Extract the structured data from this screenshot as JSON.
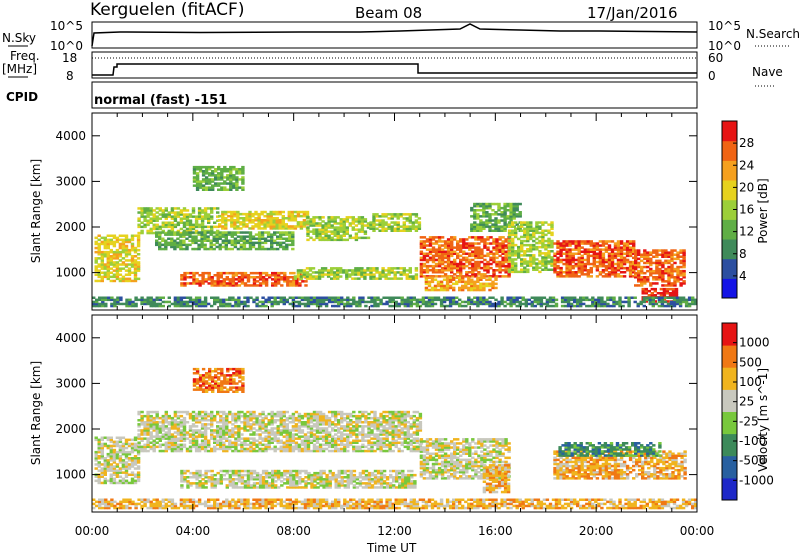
{
  "header": {
    "station": "Kerguelen (fitACF)",
    "beam": "Beam 08",
    "date": "17/Jan/2016"
  },
  "sky_panel": {
    "left_label": "N.Sky",
    "right_label": "N.Search",
    "left_ticks": [
      "10^5",
      "10^0"
    ],
    "right_ticks": [
      "10^5",
      "10^0"
    ]
  },
  "freq_panel": {
    "left_label_line1": "Freq.",
    "left_label_line2": "[MHz]",
    "right_label": "Nave",
    "left_ticks": [
      "18",
      "8"
    ],
    "right_ticks": [
      "60",
      "0"
    ],
    "cpid_label": "CPID",
    "mode_text": "normal (fast) -151"
  },
  "time_axis": {
    "title": "Time UT",
    "ticks": [
      "00:00",
      "04:00",
      "08:00",
      "12:00",
      "16:00",
      "20:00",
      "00:00"
    ]
  },
  "chart_data": [
    {
      "type": "heatmap",
      "title": "Power",
      "ylabel": "Slant Range [km]",
      "xlabel": "Time UT",
      "x_range_hours": [
        0,
        24
      ],
      "ylim": [
        180,
        4500
      ],
      "y_ticks": [
        1000,
        2000,
        3000,
        4000
      ],
      "colorbar_label": "Power [dB]",
      "colorbar_ticks": [
        "28",
        "24",
        "20",
        "16",
        "12",
        "8",
        "4"
      ],
      "colorbar_colors": [
        "#1414e6",
        "#2c4fa0",
        "#3f8a5a",
        "#5fae45",
        "#9ccf39",
        "#e6d21e",
        "#f5a01e",
        "#f06414",
        "#e61414"
      ],
      "regions": [
        {
          "t0": 0.1,
          "t1": 1.8,
          "r0": 800,
          "r1": 1800,
          "level": 5
        },
        {
          "t0": 1.8,
          "t1": 5.0,
          "r0": 1850,
          "r1": 2400,
          "level": 4
        },
        {
          "t0": 2.5,
          "t1": 8.0,
          "r0": 1500,
          "r1": 1900,
          "level": 3
        },
        {
          "t0": 3.5,
          "t1": 8.5,
          "r0": 700,
          "r1": 1000,
          "level": 7
        },
        {
          "t0": 5.0,
          "t1": 8.5,
          "r0": 1950,
          "r1": 2350,
          "level": 5
        },
        {
          "t0": 8.0,
          "t1": 12.8,
          "r0": 850,
          "r1": 1100,
          "level": 4
        },
        {
          "t0": 8.5,
          "t1": 11.0,
          "r0": 1700,
          "r1": 2200,
          "level": 4
        },
        {
          "t0": 11.0,
          "t1": 13.0,
          "r0": 1900,
          "r1": 2300,
          "level": 4
        },
        {
          "t0": 13.0,
          "t1": 16.5,
          "r0": 900,
          "r1": 1800,
          "level": 7
        },
        {
          "t0": 13.2,
          "t1": 16.0,
          "r0": 600,
          "r1": 900,
          "level": 6
        },
        {
          "t0": 15.0,
          "t1": 17.0,
          "r0": 1900,
          "r1": 2500,
          "level": 3
        },
        {
          "t0": 16.5,
          "t1": 18.3,
          "r0": 1000,
          "r1": 2100,
          "level": 4
        },
        {
          "t0": 18.3,
          "t1": 21.5,
          "r0": 900,
          "r1": 1700,
          "level": 7
        },
        {
          "t0": 21.5,
          "t1": 23.5,
          "r0": 700,
          "r1": 1500,
          "level": 7
        },
        {
          "t0": 21.8,
          "t1": 23.2,
          "r0": 350,
          "r1": 650,
          "level": 8
        },
        {
          "t0": 4.0,
          "t1": 6.0,
          "r0": 2800,
          "r1": 3300,
          "level": 3
        },
        {
          "t0": 0.0,
          "t1": 24.0,
          "r0": 250,
          "r1": 450,
          "level": 2
        }
      ]
    },
    {
      "type": "heatmap",
      "title": "Velocity",
      "ylabel": "Slant Range [km]",
      "xlabel": "Time UT",
      "x_range_hours": [
        0,
        24
      ],
      "ylim": [
        180,
        4500
      ],
      "y_ticks": [
        1000,
        2000,
        3000,
        4000
      ],
      "colorbar_label": "Velocity [m s^-1]",
      "colorbar_ticks": [
        "1000",
        "500",
        "100",
        "25",
        "-25",
        "-100",
        "-500",
        "-1000"
      ],
      "colorbar_colors": [
        "#1e28c8",
        "#2860a0",
        "#3c8a5a",
        "#78c83c",
        "#c8c8be",
        "#f0b41e",
        "#f07814",
        "#e61414"
      ],
      "regions": [
        {
          "t0": 0.1,
          "t1": 1.8,
          "r0": 800,
          "r1": 1800,
          "level": 4
        },
        {
          "t0": 1.8,
          "t1": 13.0,
          "r0": 1500,
          "r1": 2400,
          "level": 4
        },
        {
          "t0": 3.5,
          "t1": 12.8,
          "r0": 700,
          "r1": 1100,
          "level": 4
        },
        {
          "t0": 13.0,
          "t1": 16.5,
          "r0": 900,
          "r1": 1800,
          "level": 4
        },
        {
          "t0": 15.5,
          "t1": 16.5,
          "r0": 600,
          "r1": 1200,
          "level": 5
        },
        {
          "t0": 18.3,
          "t1": 23.5,
          "r0": 900,
          "r1": 1500,
          "level": 5
        },
        {
          "t0": 18.5,
          "t1": 22.5,
          "r0": 1400,
          "r1": 1700,
          "level": 2
        },
        {
          "t0": 4.0,
          "t1": 6.0,
          "r0": 2800,
          "r1": 3300,
          "level": 6
        },
        {
          "t0": 0.0,
          "t1": 24.0,
          "r0": 250,
          "r1": 450,
          "level": 5
        }
      ]
    }
  ]
}
